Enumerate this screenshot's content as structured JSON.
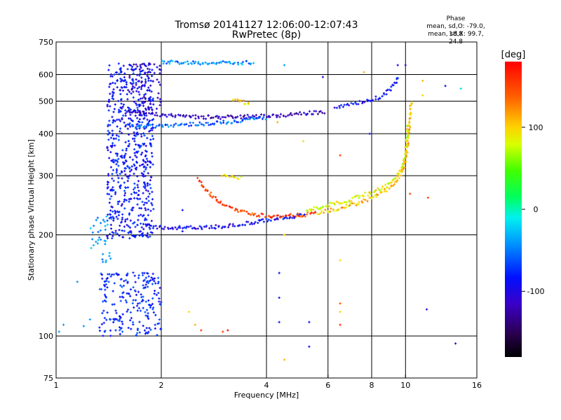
{
  "chart_data": {
    "type": "scatter",
    "title": "Tromsø 20141127 12:06:00-12:07:43",
    "subtitle": "RwPretec (8p)",
    "xlabel": "Frequency [MHz]",
    "ylabel": "Stationary phase Virtual Height [km]",
    "x_scale": "log",
    "y_scale": "log",
    "xlim": [
      1,
      16
    ],
    "ylim": [
      75,
      750
    ],
    "x_ticks": [
      1,
      2,
      4,
      6,
      8,
      10,
      16
    ],
    "x_tick_labels": [
      "1",
      "2",
      "4",
      "6",
      "8",
      "10",
      "16"
    ],
    "y_ticks": [
      75,
      100,
      200,
      300,
      400,
      500,
      600,
      750
    ],
    "y_tick_labels": [
      "75",
      "100",
      "200",
      "300",
      "400",
      "500",
      "600",
      "750"
    ],
    "grid": true,
    "phase_stats": {
      "header": "Phase",
      "o_mode": "mean, sd,O: -79.0, 18.8",
      "x_mode": "mean, sd,X: 99.7, 24.8"
    },
    "colorbar": {
      "label": "[deg]",
      "range": [
        -180,
        180
      ],
      "ticks": [
        -100,
        0,
        100
      ],
      "tick_labels": [
        "-100",
        "0",
        "100"
      ],
      "colormap": "rainbow"
    },
    "traces": [
      {
        "points": [
          [
            1.78,
            213
          ],
          [
            1.85,
            212
          ],
          [
            1.95,
            211
          ],
          [
            2.1,
            210
          ],
          [
            2.3,
            210
          ],
          [
            2.6,
            210
          ],
          [
            3.0,
            212
          ],
          [
            3.4,
            215
          ],
          [
            3.8,
            219
          ],
          [
            4.2,
            223
          ],
          [
            4.6,
            226
          ],
          [
            4.9,
            228
          ],
          [
            5.2,
            230
          ]
        ],
        "phase": -95
      },
      {
        "points": [
          [
            2.55,
            292
          ],
          [
            2.65,
            276
          ],
          [
            2.8,
            260
          ],
          [
            3.0,
            247
          ],
          [
            3.3,
            237
          ],
          [
            3.6,
            231
          ],
          [
            4.0,
            228
          ],
          [
            4.4,
            227
          ],
          [
            4.8,
            228
          ],
          [
            5.2,
            230
          ],
          [
            5.6,
            233
          ]
        ],
        "phase": 150
      },
      {
        "points": [
          [
            5.6,
            232
          ],
          [
            6.2,
            237
          ],
          [
            6.8,
            243
          ],
          [
            7.4,
            250
          ],
          [
            8.0,
            258
          ],
          [
            8.6,
            268
          ],
          [
            9.2,
            280
          ],
          [
            9.6,
            295
          ],
          [
            9.9,
            320
          ],
          [
            10.1,
            360
          ],
          [
            10.25,
            420
          ],
          [
            10.35,
            480
          ],
          [
            10.42,
            500
          ]
        ],
        "phase": 105
      },
      {
        "points": [
          [
            5.2,
            236
          ],
          [
            6.0,
            245
          ],
          [
            7.0,
            255
          ],
          [
            8.0,
            268
          ],
          [
            8.8,
            280
          ],
          [
            9.4,
            295
          ],
          [
            9.8,
            320
          ],
          [
            10.0,
            350
          ],
          [
            10.1,
            390
          ],
          [
            10.15,
            430
          ]
        ],
        "phase": 85
      },
      {
        "points": [
          [
            1.6,
            470
          ],
          [
            1.8,
            462
          ],
          [
            2.0,
            455
          ],
          [
            2.3,
            450
          ],
          [
            2.6,
            448
          ],
          [
            3.0,
            448
          ],
          [
            3.5,
            450
          ],
          [
            4.0,
            452
          ],
          [
            4.5,
            454
          ],
          [
            5.0,
            458
          ],
          [
            5.5,
            462
          ],
          [
            5.9,
            465
          ]
        ],
        "phase": -115
      },
      {
        "points": [
          [
            1.65,
            420
          ],
          [
            1.9,
            422
          ],
          [
            2.2,
            425
          ],
          [
            2.6,
            428
          ],
          [
            3.0,
            432
          ],
          [
            3.5,
            440
          ],
          [
            4.0,
            446
          ]
        ],
        "phase": -60
      },
      {
        "points": [
          [
            6.3,
            480
          ],
          [
            7.0,
            488
          ],
          [
            7.8,
            500
          ],
          [
            8.5,
            515
          ],
          [
            9.0,
            540
          ],
          [
            9.4,
            570
          ],
          [
            9.6,
            590
          ]
        ],
        "phase": -90
      },
      {
        "points": [
          [
            2.0,
            655
          ],
          [
            2.3,
            652
          ],
          [
            2.7,
            650
          ],
          [
            3.2,
            650
          ],
          [
            3.7,
            652
          ]
        ],
        "phase": -45
      },
      {
        "points": [
          [
            3.0,
            300
          ],
          [
            3.2,
            298
          ],
          [
            3.4,
            296
          ]
        ],
        "phase": 95
      },
      {
        "points": [
          [
            3.2,
            505
          ],
          [
            3.4,
            498
          ],
          [
            3.6,
            492
          ]
        ],
        "phase": 105
      }
    ],
    "clusters": [
      {
        "x": [
          1.4,
          1.9
        ],
        "y": [
          195,
          650
        ],
        "phase": -85,
        "count": 640
      },
      {
        "x": [
          1.33,
          2.0
        ],
        "y": [
          100,
          155
        ],
        "phase": -78,
        "count": 220
      },
      {
        "x": [
          1.25,
          1.45
        ],
        "y": [
          165,
          230
        ],
        "phase": -40,
        "count": 35
      },
      {
        "x": [
          1.6,
          2.0
        ],
        "y": [
          470,
          650
        ],
        "phase": -110,
        "count": 70
      }
    ],
    "scatter_points": [
      {
        "x": 1.02,
        "y": 103,
        "phase": -40
      },
      {
        "x": 1.05,
        "y": 108,
        "phase": -40
      },
      {
        "x": 1.15,
        "y": 145,
        "phase": -40
      },
      {
        "x": 1.2,
        "y": 107,
        "phase": -40
      },
      {
        "x": 1.25,
        "y": 112,
        "phase": -40
      },
      {
        "x": 2.4,
        "y": 118,
        "phase": 95
      },
      {
        "x": 2.5,
        "y": 108,
        "phase": 110
      },
      {
        "x": 2.6,
        "y": 104,
        "phase": 155
      },
      {
        "x": 3.0,
        "y": 103,
        "phase": 150
      },
      {
        "x": 3.1,
        "y": 104,
        "phase": 170
      },
      {
        "x": 4.35,
        "y": 154,
        "phase": -90
      },
      {
        "x": 4.35,
        "y": 130,
        "phase": -90
      },
      {
        "x": 4.35,
        "y": 110,
        "phase": -90
      },
      {
        "x": 4.5,
        "y": 200,
        "phase": 100
      },
      {
        "x": 4.5,
        "y": 85,
        "phase": 110
      },
      {
        "x": 5.3,
        "y": 110,
        "phase": -90
      },
      {
        "x": 5.3,
        "y": 93,
        "phase": -90
      },
      {
        "x": 6.5,
        "y": 125,
        "phase": 140
      },
      {
        "x": 6.5,
        "y": 118,
        "phase": 100
      },
      {
        "x": 6.5,
        "y": 108,
        "phase": 160
      },
      {
        "x": 6.5,
        "y": 168,
        "phase": 100
      },
      {
        "x": 6.5,
        "y": 345,
        "phase": 150
      },
      {
        "x": 7.9,
        "y": 400,
        "phase": -90
      },
      {
        "x": 10.3,
        "y": 265,
        "phase": 150
      },
      {
        "x": 11.2,
        "y": 575,
        "phase": 110
      },
      {
        "x": 11.5,
        "y": 120,
        "phase": -100
      },
      {
        "x": 11.6,
        "y": 258,
        "phase": 150
      },
      {
        "x": 11.2,
        "y": 520,
        "phase": 100
      },
      {
        "x": 13.0,
        "y": 555,
        "phase": -90
      },
      {
        "x": 14.4,
        "y": 545,
        "phase": -20
      },
      {
        "x": 13.9,
        "y": 95,
        "phase": -120
      },
      {
        "x": 4.5,
        "y": 640,
        "phase": -40
      },
      {
        "x": 4.3,
        "y": 433,
        "phase": 110
      },
      {
        "x": 5.1,
        "y": 380,
        "phase": 95
      },
      {
        "x": 9.5,
        "y": 640,
        "phase": -100
      },
      {
        "x": 10.0,
        "y": 640,
        "phase": -100
      },
      {
        "x": 5.8,
        "y": 590,
        "phase": -100
      },
      {
        "x": 7.6,
        "y": 610,
        "phase": 110
      },
      {
        "x": 2.3,
        "y": 237,
        "phase": -90
      },
      {
        "x": 2.3,
        "y": 205,
        "phase": -90
      }
    ]
  }
}
